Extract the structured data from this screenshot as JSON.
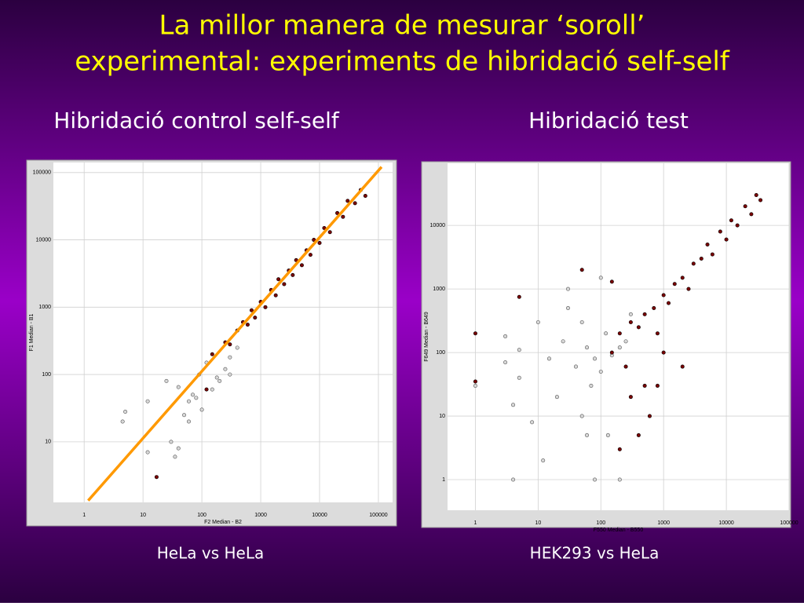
{
  "title_lines": [
    "La millor manera de mesurar ‘soroll’",
    "experimental: experiments de hibridació self-self"
  ],
  "chart_data": [
    {
      "type": "scatter",
      "title": "Hibridació control self-self",
      "caption": "HeLa vs HeLa",
      "x_label": "F2 Median - B2",
      "y_label": "F1 Median - B1",
      "log_x": true,
      "log_y": true,
      "grid": true,
      "xlim": [
        0.3,
        174000
      ],
      "ylim": [
        1.26,
        141000
      ],
      "xticks": [
        1,
        10,
        100,
        1000,
        10000,
        100000
      ],
      "yticks": [
        10,
        100,
        1000,
        10000,
        100000
      ],
      "series": [
        {
          "color": "#7a0000",
          "x": [
            250,
            300,
            400,
            500,
            600,
            700,
            800,
            1000,
            1200,
            1500,
            1800,
            2000,
            2500,
            3000,
            3500,
            4000,
            5000,
            6000,
            7000,
            8000,
            10000,
            12000,
            15000,
            20000,
            25000,
            30000,
            40000,
            50000,
            60000,
            17,
            150,
            120
          ],
          "values": [
            300,
            280,
            450,
            600,
            550,
            900,
            700,
            1200,
            1000,
            1800,
            1500,
            2600,
            2200,
            3500,
            3000,
            5000,
            4200,
            7000,
            6000,
            10000,
            9000,
            15000,
            13000,
            25000,
            22000,
            38000,
            35000,
            55000,
            45000,
            3,
            200,
            60
          ]
        },
        {
          "color": "#d8d8d8",
          "x": [
            5,
            4.5,
            12,
            12,
            30,
            35,
            40,
            50,
            60,
            70,
            80,
            100,
            150,
            200,
            250,
            300,
            40,
            25,
            60,
            90,
            120,
            180,
            300,
            400
          ],
          "values": [
            28,
            20,
            40,
            7,
            10,
            6,
            8,
            25,
            40,
            50,
            45,
            30,
            60,
            80,
            120,
            180,
            65,
            80,
            20,
            100,
            150,
            90,
            100,
            250
          ]
        }
      ],
      "fit_line": {
        "color": "#ff9900",
        "x": [
          1.17,
          113000
        ],
        "y": [
          1.34,
          121000
        ]
      }
    },
    {
      "type": "scatter",
      "title": "Hibridació test",
      "caption": "HEK293 vs HeLa",
      "x_label": "F550 Median - B550",
      "y_label": "F649 Median - B649",
      "log_x": true,
      "log_y": true,
      "grid": true,
      "xlim": [
        0.36,
        100000
      ],
      "ylim": [
        0.33,
        95000
      ],
      "xticks": [
        1,
        10,
        100,
        1000,
        10000,
        100000
      ],
      "yticks": [
        1,
        10,
        100,
        1000,
        10000
      ],
      "series": [
        {
          "color": "#7a0000",
          "x": [
            200,
            300,
            400,
            500,
            700,
            1000,
            1200,
            1500,
            2000,
            2500,
            3000,
            4000,
            5000,
            6000,
            8000,
            10000,
            12000,
            15000,
            20000,
            25000,
            30000,
            35000,
            150,
            250,
            300,
            500,
            800,
            1000,
            600,
            400,
            1,
            1,
            5,
            50,
            150,
            200,
            800,
            2000
          ],
          "values": [
            200,
            300,
            250,
            400,
            500,
            800,
            600,
            1200,
            1500,
            1000,
            2500,
            3000,
            5000,
            3500,
            8000,
            6000,
            12000,
            10000,
            20000,
            15000,
            30000,
            25000,
            100,
            60,
            20,
            30,
            200,
            100,
            10,
            5,
            200,
            35,
            750,
            2000,
            1300,
            3,
            30,
            60
          ]
        },
        {
          "color": "#d8d8d8",
          "x": [
            1,
            3,
            3,
            4,
            4,
            5,
            5,
            8,
            10,
            12,
            15,
            20,
            25,
            30,
            40,
            50,
            50,
            60,
            70,
            80,
            80,
            100,
            100,
            120,
            130,
            150,
            200,
            200,
            250,
            60,
            30,
            300
          ],
          "values": [
            30,
            180,
            70,
            15,
            1,
            110,
            40,
            8,
            300,
            2,
            80,
            20,
            150,
            500,
            60,
            10,
            300,
            120,
            30,
            80,
            1,
            50,
            1500,
            200,
            5,
            90,
            120,
            1,
            150,
            5,
            1000,
            400
          ]
        }
      ]
    }
  ]
}
